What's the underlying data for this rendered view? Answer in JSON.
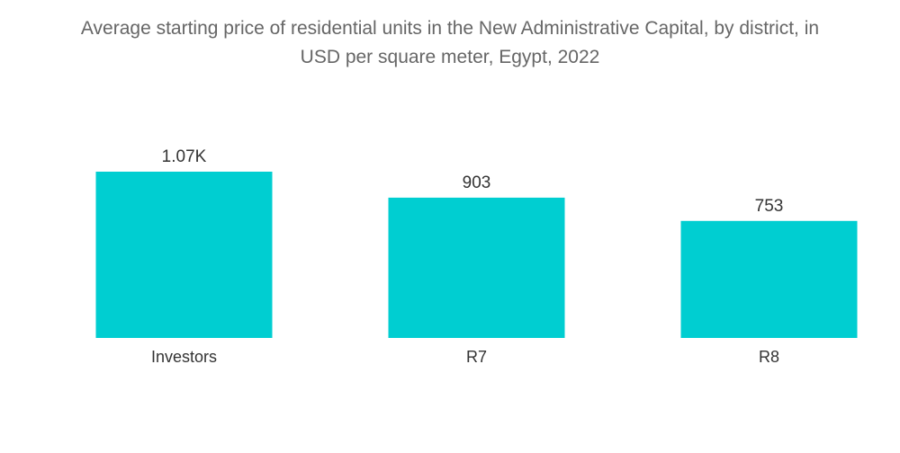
{
  "chart_data": {
    "type": "bar",
    "title_line1": "Average starting price of residential units in the New Administrative Capital, by district, in",
    "title_line2": "USD per square meter, Egypt, 2022",
    "title": "Average starting price of residential units in the New Administrative Capital, by district, in USD per square meter, Egypt, 2022",
    "categories": [
      "Investors",
      "R7",
      "R8"
    ],
    "values": [
      1070,
      903,
      753
    ],
    "data_labels": [
      "1.07K",
      "903",
      "753"
    ],
    "xlabel": "",
    "ylabel": "",
    "ylim": [
      0,
      1070
    ],
    "grid": false,
    "legend": "none",
    "bar_color": "#00CED1"
  }
}
